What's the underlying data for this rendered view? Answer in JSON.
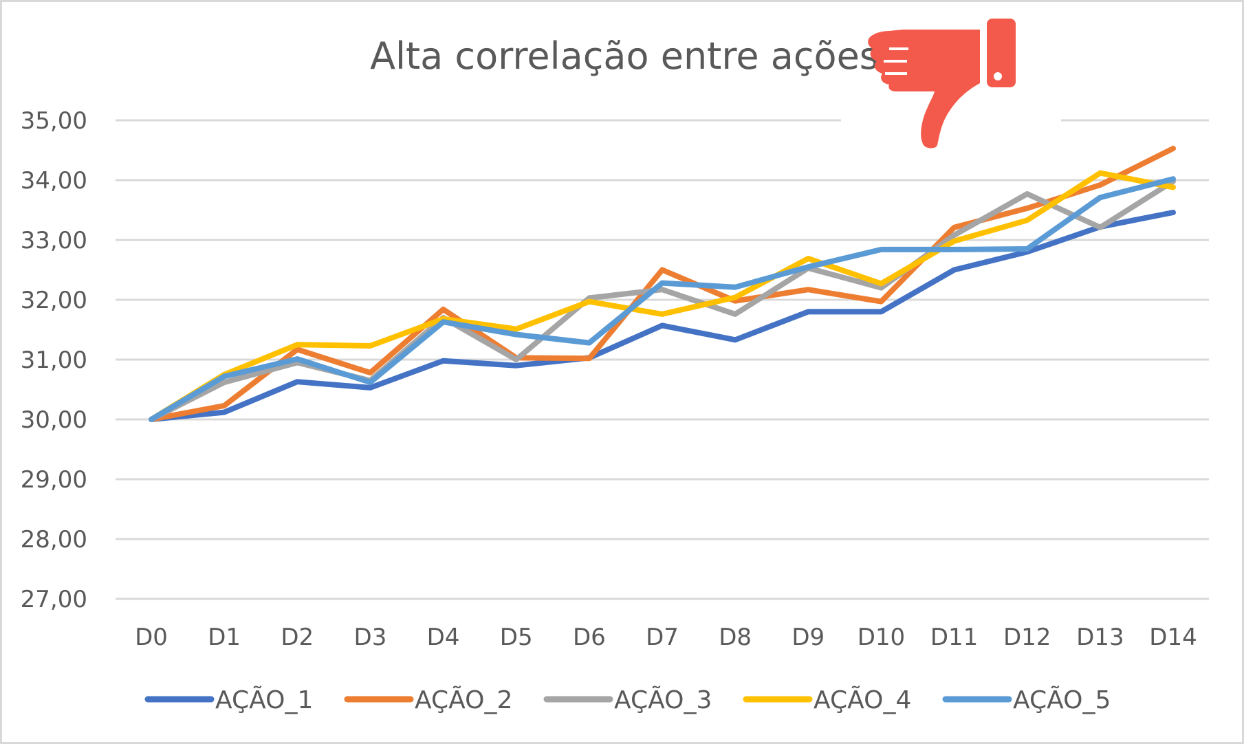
{
  "chart_data": {
    "type": "line",
    "title": "Alta correlação entre ações",
    "xlabel": "",
    "ylabel": "",
    "categories": [
      "D0",
      "D1",
      "D2",
      "D3",
      "D4",
      "D5",
      "D6",
      "D7",
      "D8",
      "D9",
      "D10",
      "D11",
      "D12",
      "D13",
      "D14"
    ],
    "ylim": [
      27,
      35
    ],
    "yticks": [
      "27,00",
      "28,00",
      "29,00",
      "30,00",
      "31,00",
      "32,00",
      "33,00",
      "34,00",
      "35,00"
    ],
    "grid": "horizontal",
    "legend_position": "bottom",
    "series": [
      {
        "name": "AÇÃO_1",
        "color": "#4472c4",
        "values": [
          30.0,
          30.12,
          30.63,
          30.53,
          30.98,
          30.9,
          31.03,
          31.57,
          31.33,
          31.8,
          31.8,
          32.5,
          32.8,
          33.22,
          33.46
        ]
      },
      {
        "name": "AÇÃO_2",
        "color": "#ed7d31",
        "values": [
          30.0,
          30.23,
          31.17,
          30.78,
          31.84,
          31.03,
          31.02,
          32.5,
          31.98,
          32.17,
          31.97,
          33.21,
          33.53,
          33.92,
          34.53
        ]
      },
      {
        "name": "AÇÃO_3",
        "color": "#a5a5a5",
        "values": [
          30.0,
          30.62,
          30.95,
          30.65,
          31.7,
          31.0,
          32.03,
          32.17,
          31.76,
          32.53,
          32.2,
          33.08,
          33.77,
          33.21,
          33.98
        ]
      },
      {
        "name": "AÇÃO_4",
        "color": "#ffc000",
        "values": [
          30.0,
          30.75,
          31.25,
          31.23,
          31.68,
          31.51,
          31.97,
          31.76,
          32.04,
          32.69,
          32.27,
          32.98,
          33.33,
          34.12,
          33.88
        ]
      },
      {
        "name": "AÇÃO_5",
        "color": "#5b9bd5",
        "values": [
          30.0,
          30.72,
          31.01,
          30.62,
          31.63,
          31.42,
          31.28,
          32.28,
          32.21,
          32.55,
          32.84,
          32.84,
          32.85,
          33.71,
          34.02
        ]
      }
    ]
  },
  "icons": {
    "title_icon": "thumbs-down-icon",
    "title_icon_color": "#f45a4b"
  }
}
